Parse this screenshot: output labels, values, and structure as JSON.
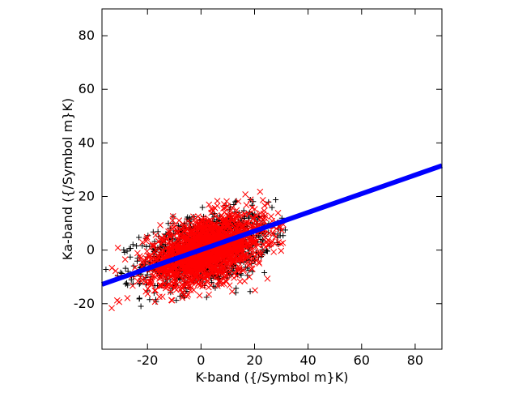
{
  "chart_data": {
    "type": "scatter",
    "title": "",
    "xlabel": "K-band ({/Symbol m}K)",
    "ylabel": "Ka-band ({/Symbol m}K)",
    "xlim": [
      -37,
      90
    ],
    "ylim": [
      -37,
      90
    ],
    "xticks": [
      -20,
      0,
      20,
      40,
      60,
      80
    ],
    "yticks": [
      -20,
      0,
      20,
      40,
      60,
      80
    ],
    "xtick_labels": [
      "-20",
      "0",
      "20",
      "40",
      "60",
      "80"
    ],
    "ytick_labels": [
      "-20",
      "0",
      "20",
      "40",
      "60",
      "80"
    ],
    "grid": false,
    "legend": "none",
    "series": [
      {
        "marker": "plus",
        "color": "#000000",
        "approx_points": 1200,
        "center": [
          2,
          0
        ],
        "x_std": 12,
        "y_std": 7,
        "correlation": 0.4,
        "x_range": [
          -37,
          35
        ],
        "y_range": [
          -25,
          26
        ]
      },
      {
        "marker": "cross",
        "color": "#ff0000",
        "approx_points": 1800,
        "center": [
          2,
          0
        ],
        "x_std": 11,
        "y_std": 6.5,
        "correlation": 0.45,
        "x_range": [
          -37,
          32
        ],
        "y_range": [
          -23,
          23
        ]
      },
      {
        "type": "line",
        "color": "#0000ff",
        "points": [
          [
            -37,
            -12.8
          ],
          [
            90,
            31.5
          ]
        ]
      }
    ]
  }
}
